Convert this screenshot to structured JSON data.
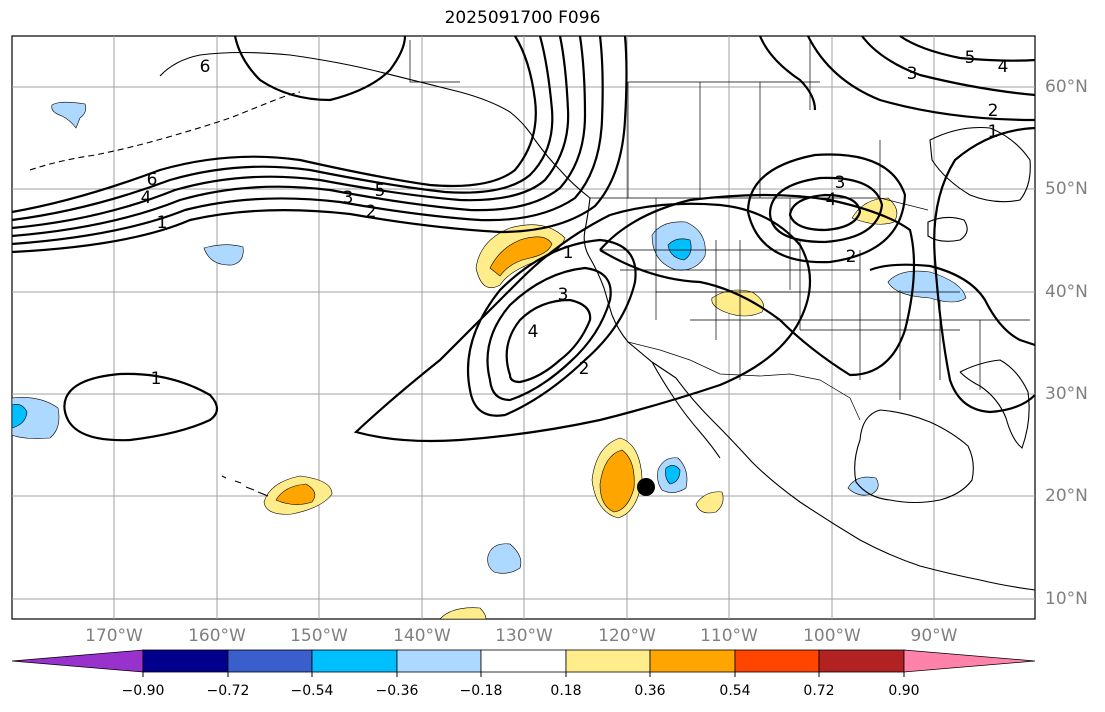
{
  "title": "2025091700 F096",
  "colors": {
    "contour": "#000000",
    "grid": "#a0a0a0",
    "coast": "#000000",
    "axis_label": "#808080"
  },
  "lat_labels": [
    "60°N",
    "50°N",
    "40°N",
    "30°N",
    "20°N",
    "10°N"
  ],
  "lon_labels": [
    "170°W",
    "160°W",
    "150°W",
    "140°W",
    "130°W",
    "120°W",
    "110°W",
    "100°W",
    "90°W"
  ],
  "contour_labels": [
    "6",
    "4",
    "3",
    "5",
    "2",
    "1",
    "1",
    "1",
    "3",
    "4",
    "2",
    "3",
    "4",
    "2",
    "3",
    "5",
    "4",
    "2",
    "1",
    "6"
  ],
  "colorbar": {
    "colors": [
      "#9932cc",
      "#00008b",
      "#3a5fcd",
      "#00bfff",
      "#add8ff",
      "#ffffff",
      "#ffec8b",
      "#ffa500",
      "#ff4500",
      "#b22222",
      "#ff82ab"
    ],
    "ticks": [
      "−0.90",
      "−0.72",
      "−0.54",
      "−0.36",
      "−0.18",
      "0.18",
      "0.36",
      "0.54",
      "0.72",
      "0.90"
    ]
  },
  "marker": {
    "label": "",
    "lat": 21,
    "lon": -118
  }
}
